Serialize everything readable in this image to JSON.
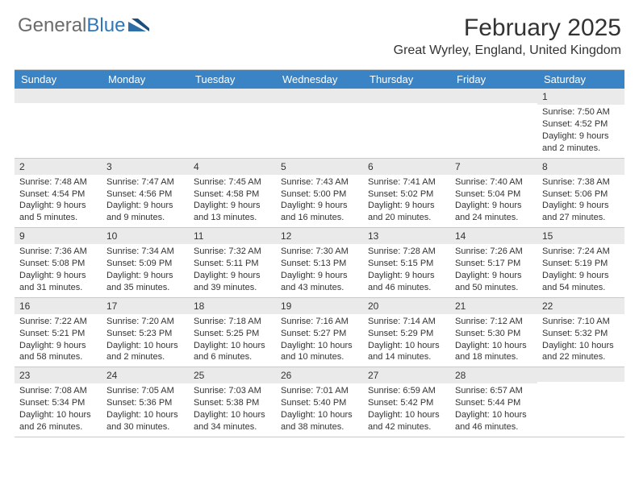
{
  "logo": {
    "text_gray": "General",
    "text_blue": "Blue"
  },
  "title": "February 2025",
  "location": "Great Wyrley, England, United Kingdom",
  "colors": {
    "header_bg": "#3a84c5",
    "header_text": "#ffffff",
    "date_bg": "#eaeaea",
    "border": "#c9c9c9",
    "text": "#333333",
    "logo_gray": "#6b6b6b",
    "logo_blue": "#2f77b8"
  },
  "day_names": [
    "Sunday",
    "Monday",
    "Tuesday",
    "Wednesday",
    "Thursday",
    "Friday",
    "Saturday"
  ],
  "weeks": [
    [
      null,
      null,
      null,
      null,
      null,
      null,
      {
        "d": "1",
        "sr": "7:50 AM",
        "ss": "4:52 PM",
        "dl": "9 hours and 2 minutes."
      }
    ],
    [
      {
        "d": "2",
        "sr": "7:48 AM",
        "ss": "4:54 PM",
        "dl": "9 hours and 5 minutes."
      },
      {
        "d": "3",
        "sr": "7:47 AM",
        "ss": "4:56 PM",
        "dl": "9 hours and 9 minutes."
      },
      {
        "d": "4",
        "sr": "7:45 AM",
        "ss": "4:58 PM",
        "dl": "9 hours and 13 minutes."
      },
      {
        "d": "5",
        "sr": "7:43 AM",
        "ss": "5:00 PM",
        "dl": "9 hours and 16 minutes."
      },
      {
        "d": "6",
        "sr": "7:41 AM",
        "ss": "5:02 PM",
        "dl": "9 hours and 20 minutes."
      },
      {
        "d": "7",
        "sr": "7:40 AM",
        "ss": "5:04 PM",
        "dl": "9 hours and 24 minutes."
      },
      {
        "d": "8",
        "sr": "7:38 AM",
        "ss": "5:06 PM",
        "dl": "9 hours and 27 minutes."
      }
    ],
    [
      {
        "d": "9",
        "sr": "7:36 AM",
        "ss": "5:08 PM",
        "dl": "9 hours and 31 minutes."
      },
      {
        "d": "10",
        "sr": "7:34 AM",
        "ss": "5:09 PM",
        "dl": "9 hours and 35 minutes."
      },
      {
        "d": "11",
        "sr": "7:32 AM",
        "ss": "5:11 PM",
        "dl": "9 hours and 39 minutes."
      },
      {
        "d": "12",
        "sr": "7:30 AM",
        "ss": "5:13 PM",
        "dl": "9 hours and 43 minutes."
      },
      {
        "d": "13",
        "sr": "7:28 AM",
        "ss": "5:15 PM",
        "dl": "9 hours and 46 minutes."
      },
      {
        "d": "14",
        "sr": "7:26 AM",
        "ss": "5:17 PM",
        "dl": "9 hours and 50 minutes."
      },
      {
        "d": "15",
        "sr": "7:24 AM",
        "ss": "5:19 PM",
        "dl": "9 hours and 54 minutes."
      }
    ],
    [
      {
        "d": "16",
        "sr": "7:22 AM",
        "ss": "5:21 PM",
        "dl": "9 hours and 58 minutes."
      },
      {
        "d": "17",
        "sr": "7:20 AM",
        "ss": "5:23 PM",
        "dl": "10 hours and 2 minutes."
      },
      {
        "d": "18",
        "sr": "7:18 AM",
        "ss": "5:25 PM",
        "dl": "10 hours and 6 minutes."
      },
      {
        "d": "19",
        "sr": "7:16 AM",
        "ss": "5:27 PM",
        "dl": "10 hours and 10 minutes."
      },
      {
        "d": "20",
        "sr": "7:14 AM",
        "ss": "5:29 PM",
        "dl": "10 hours and 14 minutes."
      },
      {
        "d": "21",
        "sr": "7:12 AM",
        "ss": "5:30 PM",
        "dl": "10 hours and 18 minutes."
      },
      {
        "d": "22",
        "sr": "7:10 AM",
        "ss": "5:32 PM",
        "dl": "10 hours and 22 minutes."
      }
    ],
    [
      {
        "d": "23",
        "sr": "7:08 AM",
        "ss": "5:34 PM",
        "dl": "10 hours and 26 minutes."
      },
      {
        "d": "24",
        "sr": "7:05 AM",
        "ss": "5:36 PM",
        "dl": "10 hours and 30 minutes."
      },
      {
        "d": "25",
        "sr": "7:03 AM",
        "ss": "5:38 PM",
        "dl": "10 hours and 34 minutes."
      },
      {
        "d": "26",
        "sr": "7:01 AM",
        "ss": "5:40 PM",
        "dl": "10 hours and 38 minutes."
      },
      {
        "d": "27",
        "sr": "6:59 AM",
        "ss": "5:42 PM",
        "dl": "10 hours and 42 minutes."
      },
      {
        "d": "28",
        "sr": "6:57 AM",
        "ss": "5:44 PM",
        "dl": "10 hours and 46 minutes."
      },
      null
    ]
  ],
  "labels": {
    "sunrise": "Sunrise:",
    "sunset": "Sunset:",
    "daylight": "Daylight:"
  }
}
